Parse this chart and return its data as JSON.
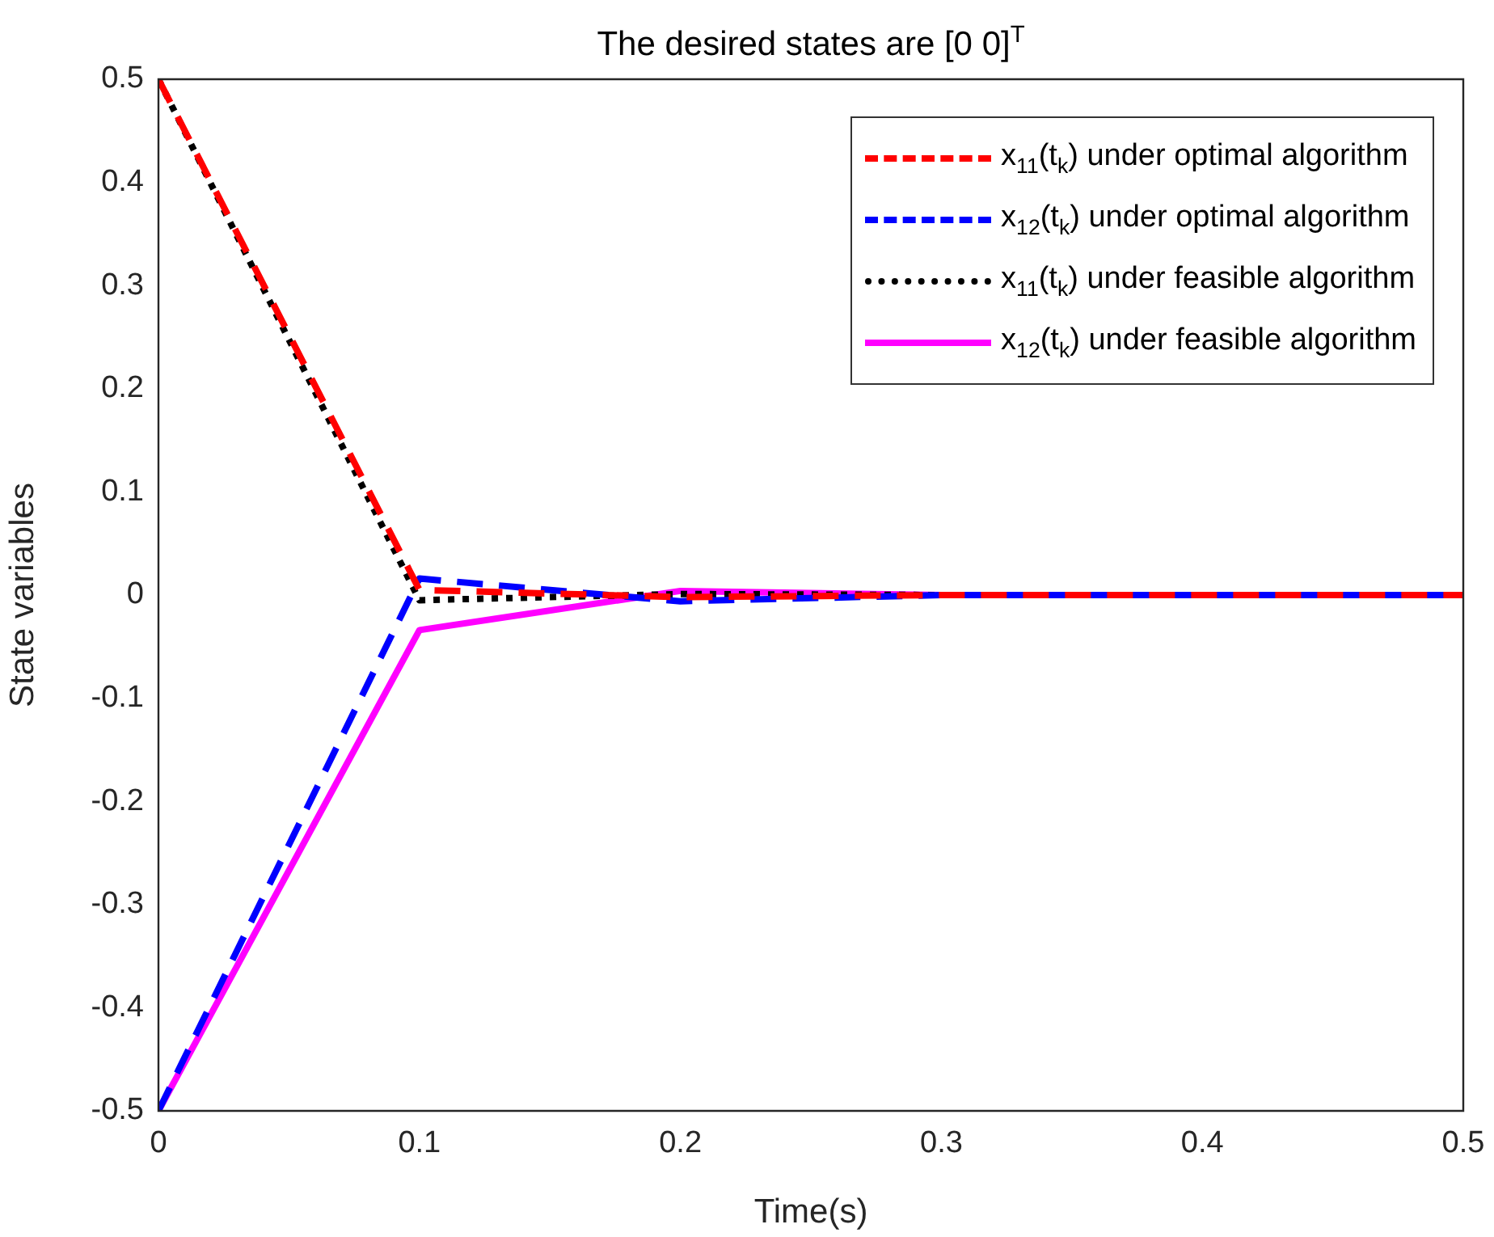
{
  "chart_data": {
    "type": "line",
    "title": "The desired states are [0 0]$^{T}$",
    "xlabel": "Time(s)",
    "ylabel": "State variables",
    "x": [
      0,
      0.1,
      0.2,
      0.3,
      0.4,
      0.5
    ],
    "series": [
      {
        "name": "x$_{11}$(t$_{k}$) under optimal algorithm",
        "color": "#ff0000",
        "line_style": "dashed",
        "values": [
          0.5,
          0.005,
          -0.002,
          0,
          0,
          0
        ]
      },
      {
        "name": "x$_{12}$(t$_{k}$) under optimal algorithm",
        "color": "#0000ff",
        "line_style": "dashed",
        "values": [
          -0.5,
          0.016,
          -0.006,
          0,
          0,
          0
        ]
      },
      {
        "name": "x$_{11}$(t$_{k}$) under feasible algorithm",
        "color": "#000000",
        "line_style": "dotted",
        "values": [
          0.5,
          -0.005,
          0.001,
          0,
          0,
          0
        ]
      },
      {
        "name": "x$_{12}$(t$_{k}$) under feasible algorithm",
        "color": "#ff00ff",
        "line_style": "solid",
        "values": [
          -0.5,
          -0.034,
          0.004,
          0,
          0,
          0
        ]
      }
    ],
    "xlim": [
      0,
      0.5
    ],
    "xticks": [
      0,
      0.1,
      0.2,
      0.3,
      0.4,
      0.5
    ],
    "ylim": [
      -0.5,
      0.5
    ],
    "yticks": [
      -0.5,
      -0.4,
      -0.3,
      -0.2,
      -0.1,
      0,
      0.1,
      0.2,
      0.3,
      0.4,
      0.5
    ],
    "grid": false,
    "legend": "top right",
    "marker": "none"
  }
}
